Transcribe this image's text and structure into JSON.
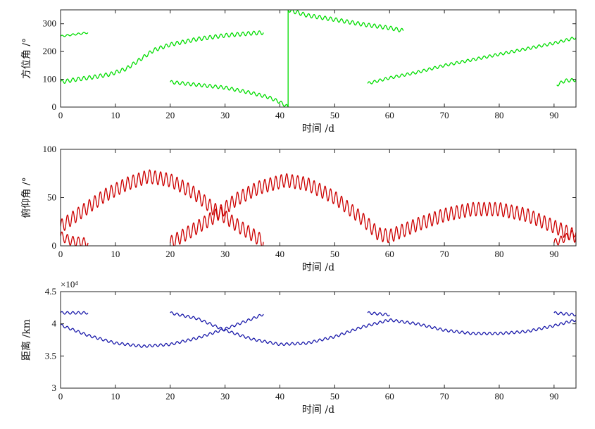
{
  "chart_data": [
    {
      "type": "line",
      "xlabel": "时间 /d",
      "ylabel": "方位角 /°",
      "xlim": [
        0,
        94
      ],
      "ylim": [
        0,
        350
      ],
      "xticks": [
        0,
        10,
        20,
        30,
        40,
        50,
        60,
        70,
        80,
        90
      ],
      "yticks": [
        0,
        100,
        200,
        300
      ],
      "grid": false,
      "series": [
        {
          "color": "#00dd00",
          "amp": 7,
          "period": 1.0,
          "points": [
            [
              0,
              90
            ],
            [
              3,
              100
            ],
            [
              6,
              108
            ],
            [
              9,
              118
            ],
            [
              12,
              138
            ],
            [
              15,
              178
            ],
            [
              17,
              205
            ],
            [
              20,
              225
            ],
            [
              25,
              245
            ],
            [
              30,
              258
            ],
            [
              35,
              266
            ],
            [
              37,
              268
            ]
          ]
        },
        {
          "color": "#00dd00",
          "amp": 3,
          "period": 1.0,
          "points": [
            [
              0,
              255
            ],
            [
              5,
              268
            ]
          ]
        },
        {
          "color": "#00dd00",
          "amp": 6,
          "period": 1.0,
          "points": [
            [
              20,
              90
            ],
            [
              25,
              80
            ],
            [
              30,
              70
            ],
            [
              35,
              50
            ],
            [
              38,
              35
            ],
            [
              40,
              18
            ],
            [
              41.5,
              0
            ]
          ]
        },
        {
          "color": "#00dd00",
          "amp": 0,
          "period": 1.0,
          "points": [
            [
              41.5,
              0
            ],
            [
              41.5,
              350
            ]
          ]
        },
        {
          "color": "#00dd00",
          "amp": 7,
          "period": 1.0,
          "points": [
            [
              41.5,
              350
            ],
            [
              45,
              330
            ],
            [
              50,
              315
            ],
            [
              55,
              298
            ],
            [
              60,
              285
            ],
            [
              62.5,
              275
            ]
          ]
        },
        {
          "color": "#00dd00",
          "amp": 5,
          "period": 1.0,
          "points": [
            [
              56,
              85
            ],
            [
              60,
              105
            ],
            [
              65,
              125
            ],
            [
              70,
              150
            ],
            [
              75,
              170
            ],
            [
              80,
              190
            ],
            [
              85,
              210
            ],
            [
              90,
              230
            ],
            [
              94,
              250
            ]
          ]
        },
        {
          "color": "#00dd00",
          "amp": 6,
          "period": 1.0,
          "points": [
            [
              90.5,
              80
            ],
            [
              92,
              95
            ],
            [
              94,
              98
            ]
          ]
        }
      ]
    },
    {
      "type": "line",
      "xlabel": "时间 /d",
      "ylabel": "俯仰角 /°",
      "xlim": [
        0,
        94
      ],
      "ylim": [
        0,
        100
      ],
      "xticks": [
        0,
        10,
        20,
        30,
        40,
        50,
        60,
        70,
        80,
        90
      ],
      "yticks": [
        0,
        50,
        100
      ],
      "grid": false,
      "series": [
        {
          "color": "#cc0000",
          "amp": 7,
          "period": 1.0,
          "points": [
            [
              0,
              20
            ],
            [
              4,
              36
            ],
            [
              8,
              52
            ],
            [
              12,
              64
            ],
            [
              16,
              72
            ],
            [
              20,
              68
            ],
            [
              24,
              56
            ],
            [
              28,
              38
            ],
            [
              32,
              22
            ],
            [
              36,
              8
            ],
            [
              37,
              4
            ]
          ]
        },
        {
          "color": "#cc0000",
          "amp": 5,
          "period": 1.0,
          "points": [
            [
              0,
              10
            ],
            [
              2,
              5
            ],
            [
              5,
              3
            ]
          ]
        },
        {
          "color": "#cc0000",
          "amp": 7,
          "period": 1.0,
          "points": [
            [
              20,
              3
            ],
            [
              24,
              16
            ],
            [
              28,
              30
            ],
            [
              32,
              48
            ],
            [
              36,
              60
            ],
            [
              41,
              68
            ],
            [
              45,
              64
            ],
            [
              50,
              50
            ],
            [
              55,
              28
            ],
            [
              58,
              12
            ],
            [
              60,
              10
            ],
            [
              65,
              22
            ],
            [
              70,
              32
            ],
            [
              75,
              38
            ],
            [
              80,
              38
            ],
            [
              85,
              32
            ],
            [
              90,
              20
            ],
            [
              94,
              10
            ]
          ]
        },
        {
          "color": "#cc0000",
          "amp": 4,
          "period": 1.0,
          "points": [
            [
              90,
              3
            ],
            [
              92,
              8
            ],
            [
              94,
              14
            ]
          ]
        }
      ]
    },
    {
      "type": "line",
      "xlabel": "时间 /d",
      "ylabel": "距离 /km",
      "scale_label": "×10⁴",
      "xlim": [
        0,
        94
      ],
      "ylim": [
        3,
        4.5
      ],
      "xticks": [
        0,
        10,
        20,
        30,
        40,
        50,
        60,
        70,
        80,
        90
      ],
      "yticks": [
        3,
        3.5,
        4,
        4.5
      ],
      "grid": false,
      "series": [
        {
          "color": "#1a1aaa",
          "amp": 0.02,
          "period": 1.0,
          "points": [
            [
              0,
              3.98
            ],
            [
              5,
              3.82
            ],
            [
              10,
              3.7
            ],
            [
              15,
              3.65
            ],
            [
              20,
              3.68
            ],
            [
              25,
              3.78
            ],
            [
              30,
              3.92
            ],
            [
              35,
              4.08
            ],
            [
              37,
              4.15
            ]
          ]
        },
        {
          "color": "#1a1aaa",
          "amp": 0.02,
          "period": 1.0,
          "points": [
            [
              0,
              4.17
            ],
            [
              5,
              4.17
            ]
          ]
        },
        {
          "color": "#1a1aaa",
          "amp": 0.02,
          "period": 1.0,
          "points": [
            [
              20,
              4.17
            ],
            [
              25,
              4.08
            ],
            [
              30,
              3.9
            ],
            [
              35,
              3.76
            ],
            [
              40,
              3.68
            ],
            [
              45,
              3.7
            ],
            [
              50,
              3.8
            ],
            [
              55,
              3.95
            ],
            [
              60,
              4.06
            ],
            [
              65,
              4.0
            ],
            [
              70,
              3.9
            ],
            [
              75,
              3.85
            ],
            [
              80,
              3.85
            ],
            [
              85,
              3.88
            ],
            [
              90,
              3.97
            ],
            [
              94,
              4.06
            ]
          ]
        },
        {
          "color": "#1a1aaa",
          "amp": 0.02,
          "period": 1.0,
          "points": [
            [
              56,
              4.17
            ],
            [
              60,
              4.14
            ]
          ]
        },
        {
          "color": "#1a1aaa",
          "amp": 0.02,
          "period": 1.0,
          "points": [
            [
              90,
              4.17
            ],
            [
              94,
              4.14
            ]
          ]
        }
      ]
    }
  ]
}
